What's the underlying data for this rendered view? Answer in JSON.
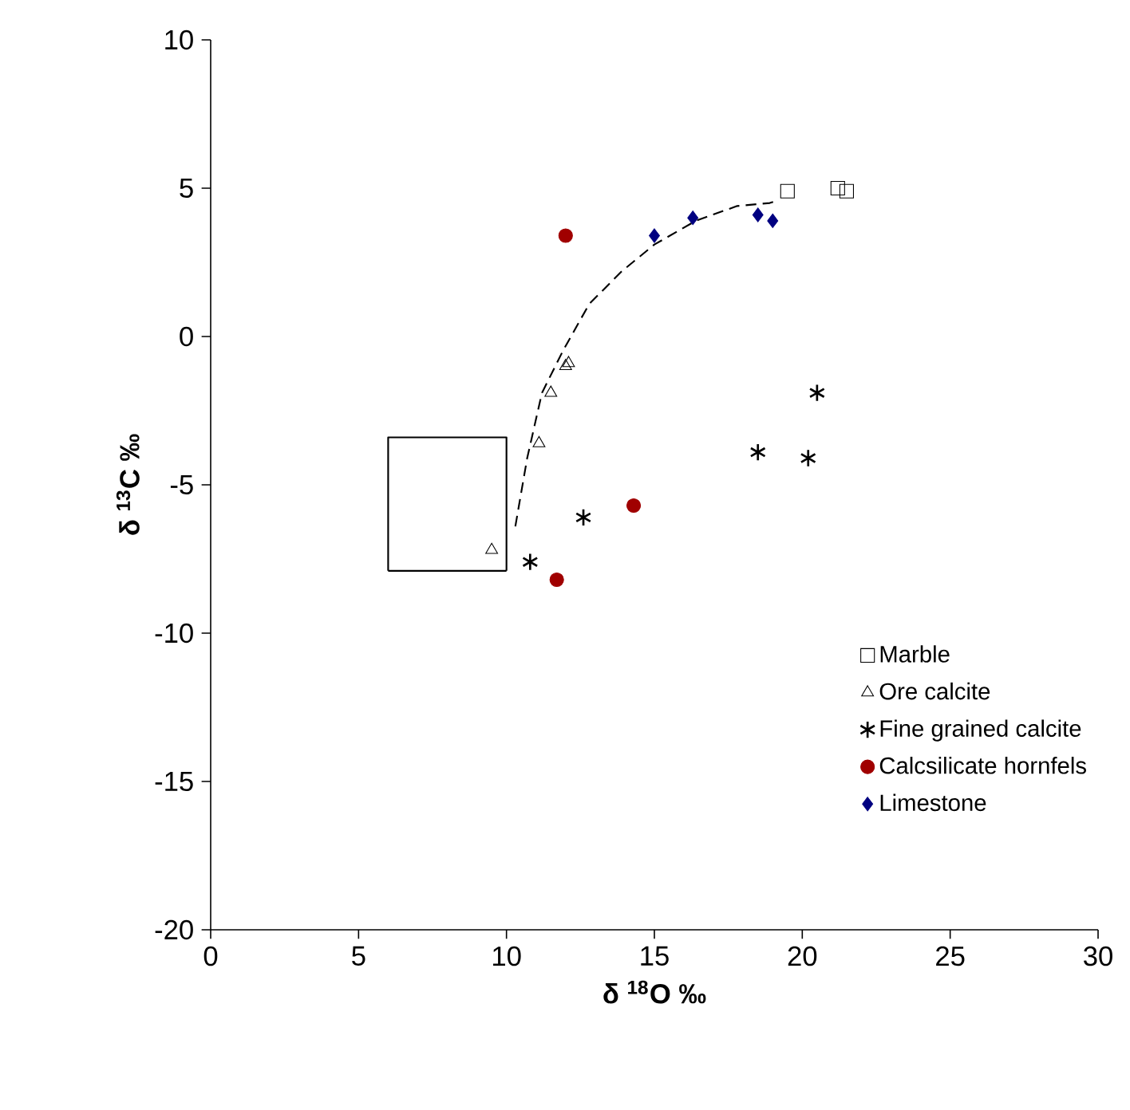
{
  "chart_data": {
    "type": "scatter",
    "xlabel": "δ $^{18}$O ‰",
    "ylabel": "δ $^{13}$C ‰",
    "xlim": [
      0,
      30
    ],
    "xticks": [
      0,
      5,
      10,
      15,
      20,
      25,
      30
    ],
    "ylim": [
      -20,
      10
    ],
    "yticks": [
      -20,
      -15,
      -10,
      -5,
      0,
      5,
      10
    ],
    "grid": false,
    "legend": "bottom right",
    "series": [
      {
        "type": "line",
        "line_style": "dashed",
        "marker": "none",
        "color": "#000000",
        "x": [
          10.3,
          10.7,
          11.2,
          11.9,
          12.8,
          13.9,
          15.0,
          16.4,
          17.8,
          18.9,
          19.2
        ],
        "values": [
          -6.4,
          -4.1,
          -1.9,
          -0.5,
          1.1,
          2.2,
          3.1,
          3.9,
          4.4,
          4.5,
          4.6
        ]
      },
      {
        "type": "line",
        "line_style": "solid",
        "marker": "none",
        "color": "#000000",
        "x": [
          6.0,
          6.0,
          10.0,
          10.0
        ],
        "values": [
          -7.9,
          -3.4,
          -3.4,
          -7.9
        ]
      },
      {
        "type": "line",
        "line_style": "solid",
        "marker": "none",
        "color": "#000000",
        "x": [
          6.0,
          10.0
        ],
        "values": [
          -7.9,
          -7.9
        ]
      },
      {
        "name": "Marble",
        "marker": "square",
        "color": "#000000",
        "x": [
          19.5,
          21.2,
          21.5
        ],
        "values": [
          4.9,
          5.0,
          4.9
        ]
      },
      {
        "name": "Ore calcite",
        "marker": "triangle",
        "color": "#000000",
        "x": [
          12.1,
          12.0,
          11.5,
          11.1,
          9.5
        ],
        "values": [
          -0.9,
          -1.0,
          -1.9,
          -3.6,
          -7.2
        ]
      },
      {
        "name": "Fine grained calcite",
        "marker": "cross",
        "color": "#000000",
        "x": [
          10.8,
          12.6,
          18.5,
          20.5,
          20.2
        ],
        "values": [
          -7.6,
          -6.1,
          -3.9,
          -1.9,
          -4.1
        ]
      },
      {
        "name": "Calcsilicate hornfels",
        "marker": "circle",
        "color": "#a00000",
        "x": [
          12.0,
          14.3,
          11.7
        ],
        "values": [
          3.4,
          -5.7,
          -8.2
        ]
      },
      {
        "name": "Limestone",
        "marker": "diamond",
        "color": "#000080",
        "x": [
          15.0,
          16.3,
          18.5,
          19.0
        ],
        "values": [
          3.4,
          4.0,
          4.1,
          3.9
        ]
      }
    ]
  }
}
